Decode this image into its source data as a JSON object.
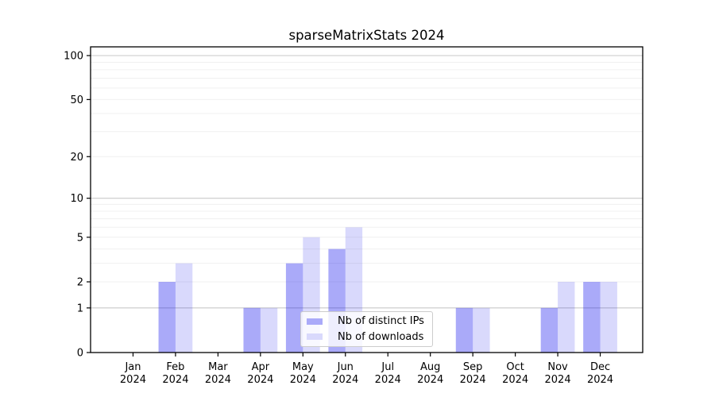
{
  "title": "sparseMatrixStats 2024",
  "legend": {
    "items": [
      {
        "label": "Nb of distinct IPs",
        "color": "#0000ee",
        "opacity": 0.335
      },
      {
        "label": "Nb of downloads",
        "color": "#0000ee",
        "opacity": 0.148
      }
    ]
  },
  "colors": {
    "bar_fill": "#0000ee",
    "grid_major": "#c9c9c9",
    "grid_minor": "#f0f0f0",
    "axis": "#000000",
    "text": "#000000"
  },
  "chart_data": {
    "type": "bar",
    "title": "sparseMatrixStats 2024",
    "categories": [
      "Jan 2024",
      "Feb 2024",
      "Mar 2024",
      "Apr 2024",
      "May 2024",
      "Jun 2024",
      "Jul 2024",
      "Aug 2024",
      "Sep 2024",
      "Oct 2024",
      "Nov 2024",
      "Dec 2024"
    ],
    "series": [
      {
        "name": "Nb of distinct IPs",
        "values": [
          0,
          2,
          0,
          1,
          3,
          4,
          0,
          0,
          1,
          0,
          1,
          2
        ],
        "color": "#0000ee",
        "opacity": 0.335
      },
      {
        "name": "Nb of downloads",
        "values": [
          0,
          3,
          0,
          1,
          5,
          6,
          0,
          0,
          1,
          0,
          2,
          2
        ],
        "color": "#0000ee",
        "opacity": 0.148
      }
    ],
    "xlabel": "",
    "ylabel": "",
    "yscale": "log10(value+1)",
    "ylim": [
      0,
      114
    ],
    "yticks": [
      0,
      1,
      2,
      5,
      10,
      20,
      50,
      100
    ],
    "grid_major_values": [
      1,
      10,
      100
    ],
    "grid_minor_values": [
      2,
      3,
      4,
      5,
      6,
      7,
      8,
      9,
      20,
      30,
      40,
      50,
      60,
      70,
      80,
      90
    ],
    "grid": "horizontal",
    "legend_position": "inside lower center"
  }
}
